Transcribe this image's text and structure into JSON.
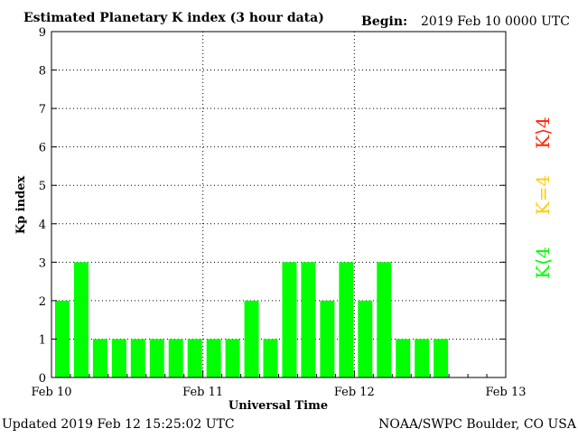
{
  "chart_data": {
    "type": "bar",
    "title": "Estimated Planetary K index (3 hour data)",
    "begin_label": "Begin:",
    "begin_value": "2019 Feb 10 0000 UTC",
    "xlabel": "Universal Time",
    "ylabel": "Kp index",
    "ylim": [
      0,
      9
    ],
    "yticks": [
      "0",
      "1",
      "2",
      "3",
      "4",
      "5",
      "6",
      "7",
      "8",
      "9"
    ],
    "xticks": [
      "Feb 10",
      "Feb 11",
      "Feb 12",
      "Feb 13"
    ],
    "grid": "dotted",
    "bar_color": "#00ff00",
    "values": [
      2,
      3,
      1,
      1,
      1,
      1,
      1,
      1,
      1,
      1,
      2,
      1,
      3,
      3,
      2,
      3,
      2,
      3,
      1,
      1,
      1
    ],
    "legend": [
      {
        "text": "K⟨4",
        "color": "#00ff00"
      },
      {
        "text": "K=4",
        "color": "#ffcc00"
      },
      {
        "text": "K⟩4",
        "color": "#ff2200"
      }
    ]
  },
  "footer": {
    "updated": "Updated 2019 Feb 12 15:25:02 UTC",
    "source": "NOAA/SWPC Boulder, CO USA"
  }
}
